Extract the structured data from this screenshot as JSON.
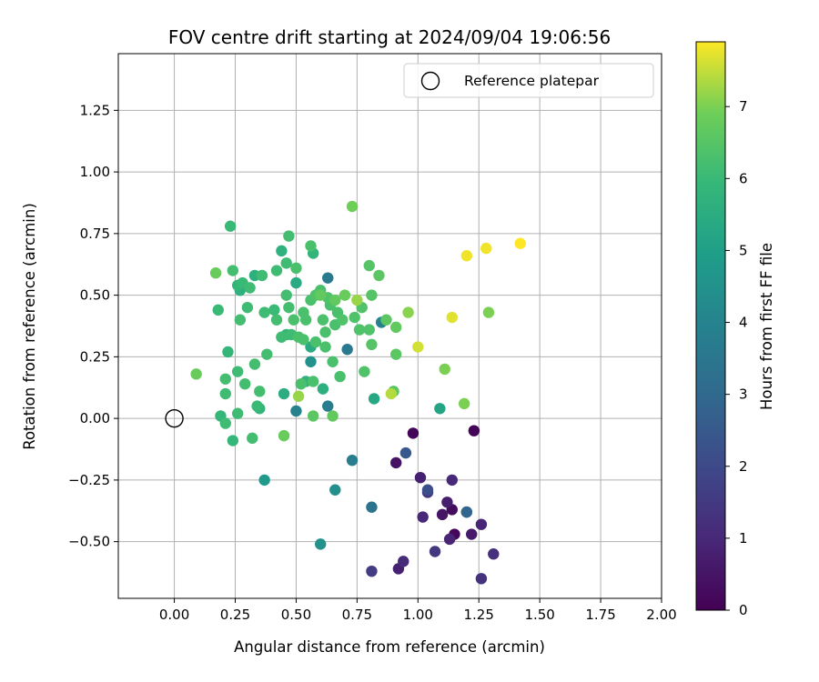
{
  "chart_data": {
    "type": "scatter",
    "title": "FOV centre drift starting at 2024/09/04 19:06:56",
    "xlabel": "Angular distance from reference (arcmin)",
    "ylabel": "Rotation from reference (arcmin)",
    "xlim": [
      -0.23,
      2.0
    ],
    "ylim": [
      -0.73,
      1.48
    ],
    "x_ticks": [
      "0.00",
      "0.25",
      "0.50",
      "0.75",
      "1.00",
      "1.25",
      "1.50",
      "1.75",
      "2.00"
    ],
    "y_ticks": [
      "−0.50",
      "−0.25",
      "0.00",
      "0.25",
      "0.50",
      "0.75",
      "1.00",
      "1.25"
    ],
    "grid": true,
    "colorbar": {
      "label": "Hours from first FF file",
      "range": [
        0,
        7.9
      ],
      "colormap": "viridis",
      "ticks": [
        "0",
        "1",
        "2",
        "3",
        "4",
        "5",
        "6",
        "7"
      ]
    },
    "legend": {
      "position": "top-right",
      "entries": [
        {
          "label": "Reference platepar",
          "marker": "open-circle"
        }
      ]
    },
    "reference_point": {
      "x": 0.0,
      "y": 0.0
    },
    "points": [
      {
        "x": 0.98,
        "y": -0.06,
        "c": 0.1
      },
      {
        "x": 1.23,
        "y": -0.05,
        "c": 0.1
      },
      {
        "x": 1.15,
        "y": -0.47,
        "c": 0.15
      },
      {
        "x": 1.14,
        "y": -0.37,
        "c": 0.25
      },
      {
        "x": 0.91,
        "y": -0.18,
        "c": 0.45
      },
      {
        "x": 1.1,
        "y": -0.39,
        "c": 0.5
      },
      {
        "x": 1.22,
        "y": -0.47,
        "c": 0.6
      },
      {
        "x": 1.12,
        "y": -0.34,
        "c": 0.7
      },
      {
        "x": 0.92,
        "y": -0.61,
        "c": 0.8
      },
      {
        "x": 1.01,
        "y": -0.24,
        "c": 0.8
      },
      {
        "x": 1.13,
        "y": -0.49,
        "c": 0.9
      },
      {
        "x": 1.26,
        "y": -0.43,
        "c": 0.9
      },
      {
        "x": 1.14,
        "y": -0.25,
        "c": 1.0
      },
      {
        "x": 1.02,
        "y": -0.4,
        "c": 1.0
      },
      {
        "x": 0.94,
        "y": -0.58,
        "c": 1.1
      },
      {
        "x": 1.31,
        "y": -0.55,
        "c": 1.2
      },
      {
        "x": 1.26,
        "y": -0.65,
        "c": 1.3
      },
      {
        "x": 1.04,
        "y": -0.3,
        "c": 1.4
      },
      {
        "x": 1.07,
        "y": -0.54,
        "c": 1.4
      },
      {
        "x": 0.81,
        "y": -0.62,
        "c": 1.6
      },
      {
        "x": 1.2,
        "y": -0.38,
        "c": 1.8
      },
      {
        "x": 1.04,
        "y": -0.29,
        "c": 2.2
      },
      {
        "x": 0.95,
        "y": -0.14,
        "c": 2.5
      },
      {
        "x": 1.2,
        "y": -0.38,
        "c": 2.9
      },
      {
        "x": 0.81,
        "y": -0.36,
        "c": 3.4
      },
      {
        "x": 0.71,
        "y": 0.28,
        "c": 3.6
      },
      {
        "x": 0.63,
        "y": 0.57,
        "c": 3.6
      },
      {
        "x": 0.63,
        "y": 0.05,
        "c": 3.8
      },
      {
        "x": 0.73,
        "y": -0.17,
        "c": 3.8
      },
      {
        "x": 0.5,
        "y": 0.03,
        "c": 4.0
      },
      {
        "x": 0.85,
        "y": 0.39,
        "c": 4.0
      },
      {
        "x": 0.66,
        "y": -0.29,
        "c": 4.4
      },
      {
        "x": 0.56,
        "y": 0.23,
        "c": 4.5
      },
      {
        "x": 0.6,
        "y": -0.51,
        "c": 4.5
      },
      {
        "x": 0.37,
        "y": -0.25,
        "c": 4.8
      },
      {
        "x": 1.09,
        "y": 0.04,
        "c": 5.2
      },
      {
        "x": 0.82,
        "y": 0.08,
        "c": 5.3
      },
      {
        "x": 0.56,
        "y": 0.29,
        "c": 5.4
      },
      {
        "x": 0.5,
        "y": 0.55,
        "c": 5.4
      },
      {
        "x": 0.45,
        "y": 0.1,
        "c": 5.5
      },
      {
        "x": 0.61,
        "y": 0.12,
        "c": 5.6
      },
      {
        "x": 0.33,
        "y": 0.58,
        "c": 5.6
      },
      {
        "x": 0.27,
        "y": 0.52,
        "c": 5.6
      },
      {
        "x": 0.54,
        "y": 0.15,
        "c": 5.7
      },
      {
        "x": 0.44,
        "y": 0.68,
        "c": 5.7
      },
      {
        "x": 0.57,
        "y": 0.67,
        "c": 5.8
      },
      {
        "x": 0.35,
        "y": 0.04,
        "c": 5.8
      },
      {
        "x": 0.19,
        "y": 0.01,
        "c": 5.9
      },
      {
        "x": 0.24,
        "y": -0.09,
        "c": 5.9
      },
      {
        "x": 0.46,
        "y": 0.34,
        "c": 5.9
      },
      {
        "x": 0.22,
        "y": 0.27,
        "c": 5.9
      },
      {
        "x": 0.26,
        "y": 0.54,
        "c": 5.9
      },
      {
        "x": 0.41,
        "y": 0.44,
        "c": 6.0
      },
      {
        "x": 0.23,
        "y": 0.78,
        "c": 6.0
      },
      {
        "x": 0.18,
        "y": 0.44,
        "c": 6.0
      },
      {
        "x": 0.28,
        "y": 0.55,
        "c": 6.0
      },
      {
        "x": 0.34,
        "y": 0.05,
        "c": 6.0
      },
      {
        "x": 0.21,
        "y": 0.1,
        "c": 6.1
      },
      {
        "x": 0.21,
        "y": -0.02,
        "c": 6.1
      },
      {
        "x": 0.26,
        "y": 0.19,
        "c": 6.1
      },
      {
        "x": 0.36,
        "y": 0.58,
        "c": 6.1
      },
      {
        "x": 0.3,
        "y": 0.45,
        "c": 6.1
      },
      {
        "x": 0.37,
        "y": 0.43,
        "c": 6.1
      },
      {
        "x": 0.44,
        "y": 0.33,
        "c": 6.1
      },
      {
        "x": 0.48,
        "y": 0.34,
        "c": 6.1
      },
      {
        "x": 0.46,
        "y": 0.63,
        "c": 6.1
      },
      {
        "x": 0.42,
        "y": 0.6,
        "c": 6.1
      },
      {
        "x": 0.31,
        "y": 0.53,
        "c": 6.1
      },
      {
        "x": 0.26,
        "y": 0.02,
        "c": 6.1
      },
      {
        "x": 0.21,
        "y": 0.16,
        "c": 6.2
      },
      {
        "x": 0.24,
        "y": 0.6,
        "c": 6.2
      },
      {
        "x": 0.27,
        "y": 0.4,
        "c": 6.2
      },
      {
        "x": 0.29,
        "y": 0.14,
        "c": 6.2
      },
      {
        "x": 0.32,
        "y": -0.08,
        "c": 6.2
      },
      {
        "x": 0.33,
        "y": 0.22,
        "c": 6.2
      },
      {
        "x": 0.35,
        "y": 0.11,
        "c": 6.2
      },
      {
        "x": 0.38,
        "y": 0.26,
        "c": 6.2
      },
      {
        "x": 0.42,
        "y": 0.4,
        "c": 6.2
      },
      {
        "x": 0.46,
        "y": 0.5,
        "c": 6.2
      },
      {
        "x": 0.47,
        "y": 0.45,
        "c": 6.2
      },
      {
        "x": 0.47,
        "y": 0.74,
        "c": 6.2
      },
      {
        "x": 0.49,
        "y": 0.4,
        "c": 6.3
      },
      {
        "x": 0.5,
        "y": 0.61,
        "c": 6.3
      },
      {
        "x": 0.51,
        "y": 0.33,
        "c": 6.3
      },
      {
        "x": 0.52,
        "y": 0.14,
        "c": 6.3
      },
      {
        "x": 0.53,
        "y": 0.43,
        "c": 6.3
      },
      {
        "x": 0.54,
        "y": 0.4,
        "c": 6.3
      },
      {
        "x": 0.53,
        "y": 0.32,
        "c": 6.3
      },
      {
        "x": 0.56,
        "y": 0.7,
        "c": 6.3
      },
      {
        "x": 0.56,
        "y": 0.48,
        "c": 6.3
      },
      {
        "x": 0.57,
        "y": 0.15,
        "c": 6.3
      },
      {
        "x": 0.58,
        "y": 0.31,
        "c": 6.3
      },
      {
        "x": 0.6,
        "y": 0.52,
        "c": 6.3
      },
      {
        "x": 0.61,
        "y": 0.4,
        "c": 6.3
      },
      {
        "x": 0.62,
        "y": 0.29,
        "c": 6.3
      },
      {
        "x": 0.62,
        "y": 0.35,
        "c": 6.3
      },
      {
        "x": 0.64,
        "y": 0.46,
        "c": 6.3
      },
      {
        "x": 0.65,
        "y": 0.23,
        "c": 6.3
      },
      {
        "x": 0.66,
        "y": 0.38,
        "c": 6.3
      },
      {
        "x": 0.68,
        "y": 0.17,
        "c": 6.3
      },
      {
        "x": 0.67,
        "y": 0.43,
        "c": 6.3
      },
      {
        "x": 0.69,
        "y": 0.4,
        "c": 6.4
      },
      {
        "x": 0.63,
        "y": 0.49,
        "c": 6.4
      },
      {
        "x": 0.58,
        "y": 0.5,
        "c": 6.4
      },
      {
        "x": 0.74,
        "y": 0.41,
        "c": 6.4
      },
      {
        "x": 0.76,
        "y": 0.36,
        "c": 6.4
      },
      {
        "x": 0.77,
        "y": 0.45,
        "c": 6.4
      },
      {
        "x": 0.78,
        "y": 0.19,
        "c": 6.4
      },
      {
        "x": 0.8,
        "y": 0.36,
        "c": 6.4
      },
      {
        "x": 0.8,
        "y": 0.62,
        "c": 6.5
      },
      {
        "x": 0.81,
        "y": 0.5,
        "c": 6.5
      },
      {
        "x": 0.81,
        "y": 0.3,
        "c": 6.5
      },
      {
        "x": 0.84,
        "y": 0.58,
        "c": 6.6
      },
      {
        "x": 0.87,
        "y": 0.4,
        "c": 6.6
      },
      {
        "x": 0.9,
        "y": 0.11,
        "c": 6.6
      },
      {
        "x": 0.91,
        "y": 0.26,
        "c": 6.6
      },
      {
        "x": 0.91,
        "y": 0.37,
        "c": 6.7
      },
      {
        "x": 0.57,
        "y": 0.01,
        "c": 6.6
      },
      {
        "x": 0.65,
        "y": 0.01,
        "c": 6.7
      },
      {
        "x": 0.6,
        "y": 0.5,
        "c": 6.7
      },
      {
        "x": 0.66,
        "y": 0.48,
        "c": 6.7
      },
      {
        "x": 0.7,
        "y": 0.5,
        "c": 6.8
      },
      {
        "x": 0.09,
        "y": 0.18,
        "c": 6.8
      },
      {
        "x": 0.17,
        "y": 0.59,
        "c": 6.8
      },
      {
        "x": 0.45,
        "y": -0.07,
        "c": 6.8
      },
      {
        "x": 0.73,
        "y": 0.86,
        "c": 6.9
      },
      {
        "x": 1.11,
        "y": 0.2,
        "c": 7.0
      },
      {
        "x": 1.19,
        "y": 0.06,
        "c": 7.0
      },
      {
        "x": 1.29,
        "y": 0.43,
        "c": 7.0
      },
      {
        "x": 0.96,
        "y": 0.43,
        "c": 7.1
      },
      {
        "x": 0.75,
        "y": 0.48,
        "c": 7.2
      },
      {
        "x": 0.51,
        "y": 0.09,
        "c": 7.2
      },
      {
        "x": 0.89,
        "y": 0.1,
        "c": 7.4
      },
      {
        "x": 1.0,
        "y": 0.29,
        "c": 7.6
      },
      {
        "x": 1.14,
        "y": 0.41,
        "c": 7.7
      },
      {
        "x": 1.2,
        "y": 0.66,
        "c": 7.8
      },
      {
        "x": 1.28,
        "y": 0.69,
        "c": 7.8
      },
      {
        "x": 1.42,
        "y": 0.71,
        "c": 7.9
      }
    ]
  }
}
